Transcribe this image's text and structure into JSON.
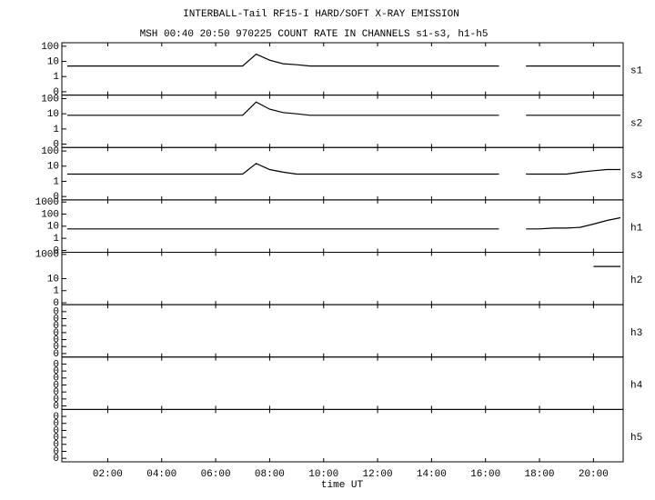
{
  "chart_data": {
    "type": "stacked",
    "title": "INTERBALL-Tail RF15-I HARD/SOFT X-RAY EMISSION",
    "subtitle": "MSH 00:40 20:50 970225  COUNT RATE IN CHANNELS s1-s3, h1-h5",
    "xlabel": "time UT",
    "xlim": [
      0.3,
      21.1
    ],
    "xticks": [
      {
        "value": 2,
        "label": "02:00"
      },
      {
        "value": 4,
        "label": "04:00"
      },
      {
        "value": 6,
        "label": "06:00"
      },
      {
        "value": 8,
        "label": "08:00"
      },
      {
        "value": 10,
        "label": "10:00"
      },
      {
        "value": 12,
        "label": "12:00"
      },
      {
        "value": 14,
        "label": "14:00"
      },
      {
        "value": 16,
        "label": "16:00"
      },
      {
        "value": 18,
        "label": "18:00"
      },
      {
        "value": 20,
        "label": "20:00"
      }
    ],
    "x": [
      0.5,
      1,
      1.5,
      2,
      2.5,
      3,
      3.5,
      4,
      4.5,
      5,
      5.5,
      6,
      6.5,
      7,
      7.5,
      8,
      8.5,
      9,
      9.5,
      10,
      10.5,
      11,
      11.5,
      12,
      12.5,
      13,
      13.5,
      14,
      14.5,
      15,
      15.5,
      16,
      16.5,
      17,
      17.5,
      18,
      18.5,
      19,
      19.5,
      20,
      20.5,
      21
    ],
    "panels": [
      {
        "type": "line",
        "log": true,
        "ylim": [
          0.06,
          170
        ],
        "yticks": [
          {
            "value": 0.1,
            "label": "0"
          },
          1,
          10,
          100
        ],
        "series": [
          {
            "name": "s1",
            "color": "#000000",
            "values": [
              5,
              5,
              5,
              5,
              5,
              5,
              5,
              5,
              5,
              5,
              5,
              5,
              5,
              5,
              30,
              12,
              7,
              6,
              5,
              5,
              5,
              5,
              5,
              5,
              5,
              5,
              5,
              5,
              5,
              5,
              5,
              5,
              5,
              null,
              5,
              5,
              5,
              5,
              5,
              5,
              5,
              5
            ]
          }
        ]
      },
      {
        "type": "line",
        "log": true,
        "ylim": [
          0.06,
          170
        ],
        "yticks": [
          {
            "value": 0.1,
            "label": "0"
          },
          1,
          10,
          100
        ],
        "series": [
          {
            "name": "s2",
            "color": "#000000",
            "values": [
              8,
              8,
              8,
              8,
              8,
              8,
              8,
              8,
              8,
              8,
              8,
              8,
              8,
              8,
              60,
              20,
              12,
              10,
              8,
              8,
              8,
              8,
              8,
              8,
              8,
              8,
              8,
              8,
              8,
              8,
              8,
              8,
              8,
              null,
              8,
              8,
              8,
              8,
              8,
              8,
              8,
              8
            ]
          }
        ]
      },
      {
        "type": "line",
        "log": true,
        "ylim": [
          0.06,
          170
        ],
        "yticks": [
          {
            "value": 0.1,
            "label": "0"
          },
          1,
          10,
          100
        ],
        "series": [
          {
            "name": "s3",
            "color": "#000000",
            "values": [
              3,
              3,
              3,
              3,
              3,
              3,
              3,
              3,
              3,
              3,
              3,
              3,
              3,
              3,
              15,
              6,
              4,
              3,
              3,
              3,
              3,
              3,
              3,
              3,
              3,
              3,
              3,
              3,
              3,
              3,
              3,
              3,
              3,
              null,
              3,
              3,
              3,
              3,
              4,
              5,
              6,
              6
            ]
          }
        ]
      },
      {
        "type": "line",
        "log": true,
        "ylim": [
          0.07,
          1500
        ],
        "yticks": [
          {
            "value": 0.1,
            "label": "0"
          },
          1,
          10,
          100,
          1000
        ],
        "series": [
          {
            "name": "h1",
            "color": "#000000",
            "values": [
              6,
              6,
              6,
              6,
              6,
              6,
              6,
              6,
              6,
              6,
              6,
              6,
              6,
              6,
              6,
              6,
              6,
              6,
              6,
              6,
              6,
              6,
              6,
              6,
              6,
              6,
              6,
              6,
              6,
              6,
              6,
              6,
              6,
              null,
              6,
              6,
              7,
              7,
              8,
              15,
              30,
              50
            ]
          }
        ]
      },
      {
        "type": "line",
        "log": true,
        "ylim": [
          0.07,
          1500
        ],
        "yticks": [
          {
            "value": 0.1,
            "label": "0"
          },
          1,
          10,
          1000
        ],
        "series": [
          {
            "name": "h2",
            "color": "#000000",
            "values": [
              null,
              null,
              null,
              null,
              null,
              null,
              null,
              null,
              null,
              null,
              null,
              null,
              null,
              null,
              null,
              null,
              null,
              null,
              null,
              null,
              null,
              null,
              null,
              null,
              null,
              null,
              null,
              null,
              null,
              null,
              null,
              null,
              null,
              null,
              null,
              null,
              null,
              null,
              null,
              100,
              100,
              100
            ]
          }
        ]
      },
      {
        "type": "line",
        "log": false,
        "ylim": [
          0,
          0.0075
        ],
        "yticks": [
          {
            "value": 0.0005,
            "label": "0"
          },
          {
            "value": 0.0015,
            "label": "0"
          },
          {
            "value": 0.0025,
            "label": "0"
          },
          {
            "value": 0.0035,
            "label": "0"
          },
          {
            "value": 0.0045,
            "label": "0"
          },
          {
            "value": 0.0055,
            "label": "0"
          },
          {
            "value": 0.0065,
            "label": "0"
          }
        ],
        "series": [
          {
            "name": "h3",
            "color": "#000000",
            "values": [
              null,
              null,
              null,
              null,
              null,
              null,
              null,
              null,
              null,
              null,
              null,
              null,
              null,
              null,
              null,
              null,
              null,
              null,
              null,
              null,
              null,
              null,
              null,
              null,
              null,
              null,
              null,
              null,
              null,
              null,
              null,
              null,
              null,
              null,
              null,
              null,
              null,
              null,
              null,
              null,
              null,
              null
            ]
          }
        ]
      },
      {
        "type": "line",
        "log": false,
        "ylim": [
          0,
          0.0075
        ],
        "yticks": [
          {
            "value": 0.0005,
            "label": "0"
          },
          {
            "value": 0.0015,
            "label": "0"
          },
          {
            "value": 0.0025,
            "label": "0"
          },
          {
            "value": 0.0035,
            "label": "0"
          },
          {
            "value": 0.0045,
            "label": "0"
          },
          {
            "value": 0.0055,
            "label": "0"
          },
          {
            "value": 0.0065,
            "label": "0"
          }
        ],
        "series": [
          {
            "name": "h4",
            "color": "#000000",
            "values": [
              null,
              null,
              null,
              null,
              null,
              null,
              null,
              null,
              null,
              null,
              null,
              null,
              null,
              null,
              null,
              null,
              null,
              null,
              null,
              null,
              null,
              null,
              null,
              null,
              null,
              null,
              null,
              null,
              null,
              null,
              null,
              null,
              null,
              null,
              null,
              null,
              null,
              null,
              null,
              null,
              null,
              null
            ]
          }
        ]
      },
      {
        "type": "line",
        "log": false,
        "ylim": [
          0,
          0.0075
        ],
        "yticks": [
          {
            "value": 0.0005,
            "label": "0"
          },
          {
            "value": 0.0015,
            "label": "0"
          },
          {
            "value": 0.0025,
            "label": "0"
          },
          {
            "value": 0.0035,
            "label": "0"
          },
          {
            "value": 0.0045,
            "label": "0"
          },
          {
            "value": 0.0055,
            "label": "0"
          },
          {
            "value": 0.0065,
            "label": "0"
          }
        ],
        "series": [
          {
            "name": "h5",
            "color": "#000000",
            "values": [
              null,
              null,
              null,
              null,
              null,
              null,
              null,
              null,
              null,
              null,
              null,
              null,
              null,
              null,
              null,
              null,
              null,
              null,
              null,
              null,
              null,
              null,
              null,
              null,
              null,
              null,
              null,
              null,
              null,
              null,
              null,
              null,
              null,
              null,
              null,
              null,
              null,
              null,
              null,
              null,
              null,
              null
            ]
          }
        ]
      }
    ]
  }
}
